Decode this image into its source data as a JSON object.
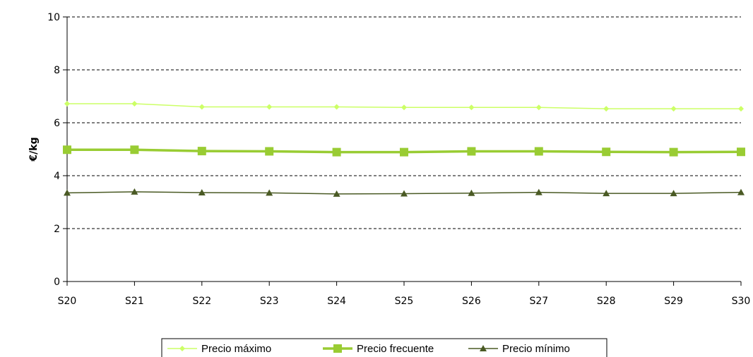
{
  "chart_data": {
    "type": "line",
    "title": "",
    "xlabel": "",
    "ylabel": "€/kg",
    "ylim": [
      0,
      10
    ],
    "yticks": [
      0,
      2,
      4,
      6,
      8,
      10
    ],
    "grid": "horizontal dashed",
    "legend_position": "bottom",
    "categories": [
      "S20",
      "S21",
      "S22",
      "S23",
      "S24",
      "S25",
      "S26",
      "S27",
      "S28",
      "S29",
      "S30"
    ],
    "series": [
      {
        "name": "Precio máximo",
        "marker": "diamond",
        "color": "#ccff66",
        "values": [
          6.72,
          6.72,
          6.6,
          6.6,
          6.6,
          6.58,
          6.58,
          6.58,
          6.53,
          6.53,
          6.53
        ]
      },
      {
        "name": "Precio frecuente",
        "marker": "square",
        "color": "#99cc33",
        "values": [
          4.98,
          4.98,
          4.93,
          4.92,
          4.89,
          4.89,
          4.92,
          4.92,
          4.9,
          4.89,
          4.9
        ]
      },
      {
        "name": "Precio mínimo",
        "marker": "triangle",
        "color": "#4a5a24",
        "values": [
          3.35,
          3.39,
          3.36,
          3.35,
          3.31,
          3.32,
          3.34,
          3.37,
          3.33,
          3.33,
          3.37
        ]
      }
    ]
  }
}
